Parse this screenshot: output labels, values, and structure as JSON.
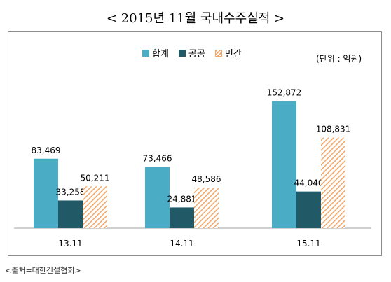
{
  "title": "< 2015년 11월 국내수주실적 >",
  "unit": "(단위 : 억원)",
  "source": "<출처=대한건설협회>",
  "colors": {
    "total": "#4bacc6",
    "public": "#215967",
    "private": "#f2a668"
  },
  "chart_data": {
    "type": "bar",
    "categories": [
      "13.11",
      "14.11",
      "15.11"
    ],
    "series": [
      {
        "name": "합계",
        "values": [
          83469,
          73466,
          152872
        ]
      },
      {
        "name": "공공",
        "values": [
          33258,
          24881,
          44040
        ]
      },
      {
        "name": "민간",
        "values": [
          50211,
          48586,
          108831
        ]
      }
    ],
    "value_labels": [
      [
        "83,469",
        "73,466",
        "152,872"
      ],
      [
        "33,258",
        "24,881",
        "44,040"
      ],
      [
        "50,211",
        "48,586",
        "108,831"
      ]
    ],
    "ylim": [
      0,
      180000
    ],
    "grid": false,
    "legend": "top-center"
  }
}
